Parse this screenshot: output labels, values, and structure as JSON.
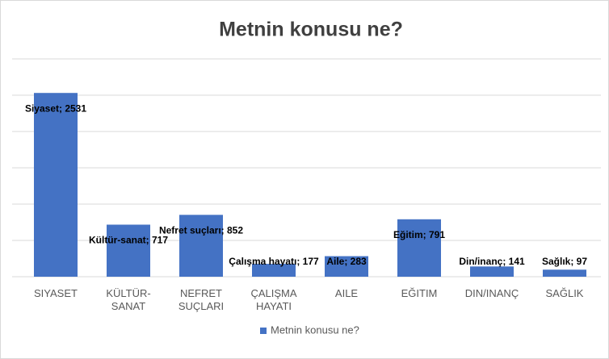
{
  "chart_data": {
    "type": "bar",
    "title": "Metnin konusu ne?",
    "categories": [
      "SIYASET",
      "KÜLTÜR-SANAT",
      "NEFRET SUÇLARI",
      "ÇALIŞMA HAYATI",
      "AILE",
      "EĞITIM",
      "DIN/INANÇ",
      "SAĞLIK"
    ],
    "series": [
      {
        "name": "Metnin konusu ne?",
        "color": "#4472c4",
        "values": [
          2531,
          717,
          852,
          177,
          283,
          791,
          141,
          97
        ],
        "value_labels": [
          "Siyaset; 2531",
          "Kültür-sanat; 717",
          "Nefret suçları; 852",
          "Çalışma hayatı; 177",
          "Aile; 283",
          "Eğitim; 791",
          "Din/inanç; 141",
          "Sağlık; 97"
        ]
      }
    ],
    "ylim": [
      0,
      3000
    ],
    "yticks": [
      0,
      500,
      1000,
      1500,
      2000,
      2500,
      3000
    ],
    "grid": true,
    "legend": "bottom"
  }
}
